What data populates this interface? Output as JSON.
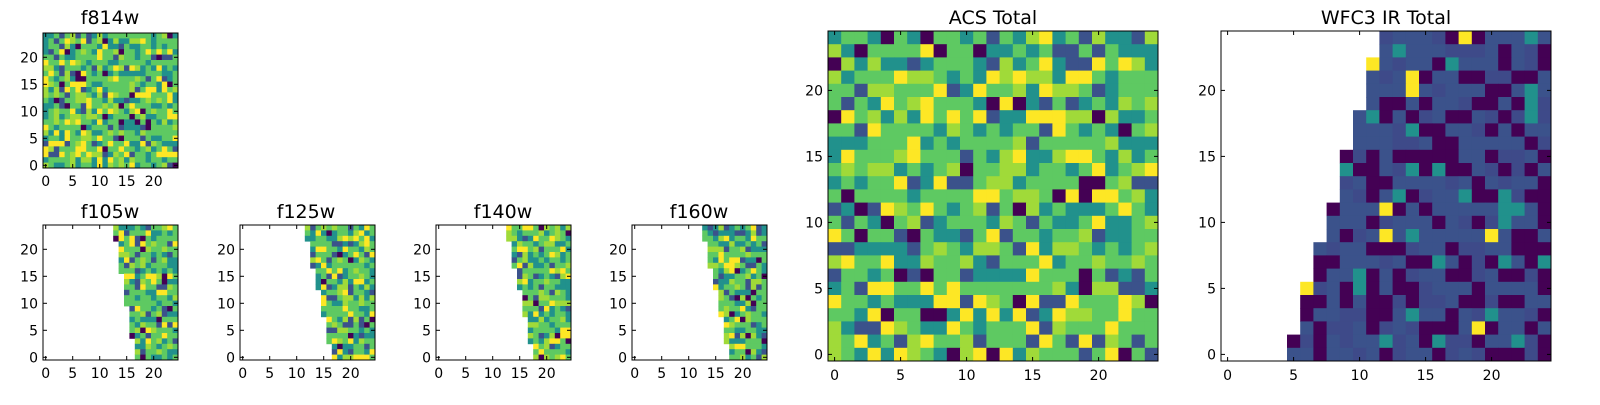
{
  "figure": {
    "background": "#ffffff"
  },
  "colormap": [
    "#440154",
    "#3b528b",
    "#21918c",
    "#5ec962",
    "#fde725"
  ],
  "chart_data": [
    {
      "id": "f814w",
      "type": "heatmap",
      "title": "f814w",
      "grid_size": 25,
      "xlim": [
        -0.5,
        24.5
      ],
      "ylim": [
        -0.5,
        24.5
      ],
      "x_ticks": [
        0,
        5,
        10,
        15,
        20
      ],
      "y_ticks": [
        0,
        5,
        10,
        15,
        20
      ],
      "coverage": "full",
      "palette_bias": "high",
      "seed": 11
    },
    {
      "id": "f105w",
      "type": "heatmap",
      "title": "f105w",
      "grid_size": 25,
      "xlim": [
        -0.5,
        24.5
      ],
      "ylim": [
        -0.5,
        24.5
      ],
      "x_ticks": [
        0,
        5,
        10,
        15,
        20
      ],
      "y_ticks": [
        0,
        5,
        10,
        15,
        20
      ],
      "coverage_left_edge": {
        "y0": 17,
        "y24": 13
      },
      "palette_bias": "high",
      "seed": 23
    },
    {
      "id": "f125w",
      "type": "heatmap",
      "title": "f125w",
      "grid_size": 25,
      "xlim": [
        -0.5,
        24.5
      ],
      "ylim": [
        -0.5,
        24.5
      ],
      "x_ticks": [
        0,
        5,
        10,
        15,
        20
      ],
      "y_ticks": [
        0,
        5,
        10,
        15,
        20
      ],
      "coverage_left_edge": {
        "y0": 17,
        "y24": 12
      },
      "palette_bias": "high",
      "seed": 37
    },
    {
      "id": "f140w",
      "type": "heatmap",
      "title": "f140w",
      "grid_size": 25,
      "xlim": [
        -0.5,
        24.5
      ],
      "ylim": [
        -0.5,
        24.5
      ],
      "x_ticks": [
        0,
        5,
        10,
        15,
        20
      ],
      "y_ticks": [
        0,
        5,
        10,
        15,
        20
      ],
      "coverage_left_edge": {
        "y0": 18,
        "y24": 13
      },
      "palette_bias": "high",
      "seed": 41
    },
    {
      "id": "f160w",
      "type": "heatmap",
      "title": "f160w",
      "grid_size": 25,
      "xlim": [
        -0.5,
        24.5
      ],
      "ylim": [
        -0.5,
        24.5
      ],
      "x_ticks": [
        0,
        5,
        10,
        15,
        20
      ],
      "y_ticks": [
        0,
        5,
        10,
        15,
        20
      ],
      "coverage_left_edge": {
        "y0": 18,
        "y24": 13
      },
      "palette_bias": "high",
      "seed": 53
    },
    {
      "id": "acs-total",
      "type": "heatmap",
      "title": "ACS Total",
      "grid_size": 25,
      "xlim": [
        -0.5,
        24.5
      ],
      "ylim": [
        -0.5,
        24.5
      ],
      "x_ticks": [
        0,
        5,
        10,
        15,
        20
      ],
      "y_ticks": [
        0,
        5,
        10,
        15,
        20
      ],
      "coverage": "full",
      "palette_bias": "high",
      "seed": 67
    },
    {
      "id": "wfc3-ir-total",
      "type": "heatmap",
      "title": "WFC3 IR Total",
      "grid_size": 25,
      "xlim": [
        -0.5,
        24.5
      ],
      "ylim": [
        -0.5,
        24.5
      ],
      "x_ticks": [
        0,
        5,
        10,
        15,
        20
      ],
      "y_ticks": [
        0,
        5,
        10,
        15,
        20
      ],
      "coverage_left_edge": {
        "y0": 5,
        "y24": 12
      },
      "palette_bias": "low",
      "seed": 79
    }
  ]
}
